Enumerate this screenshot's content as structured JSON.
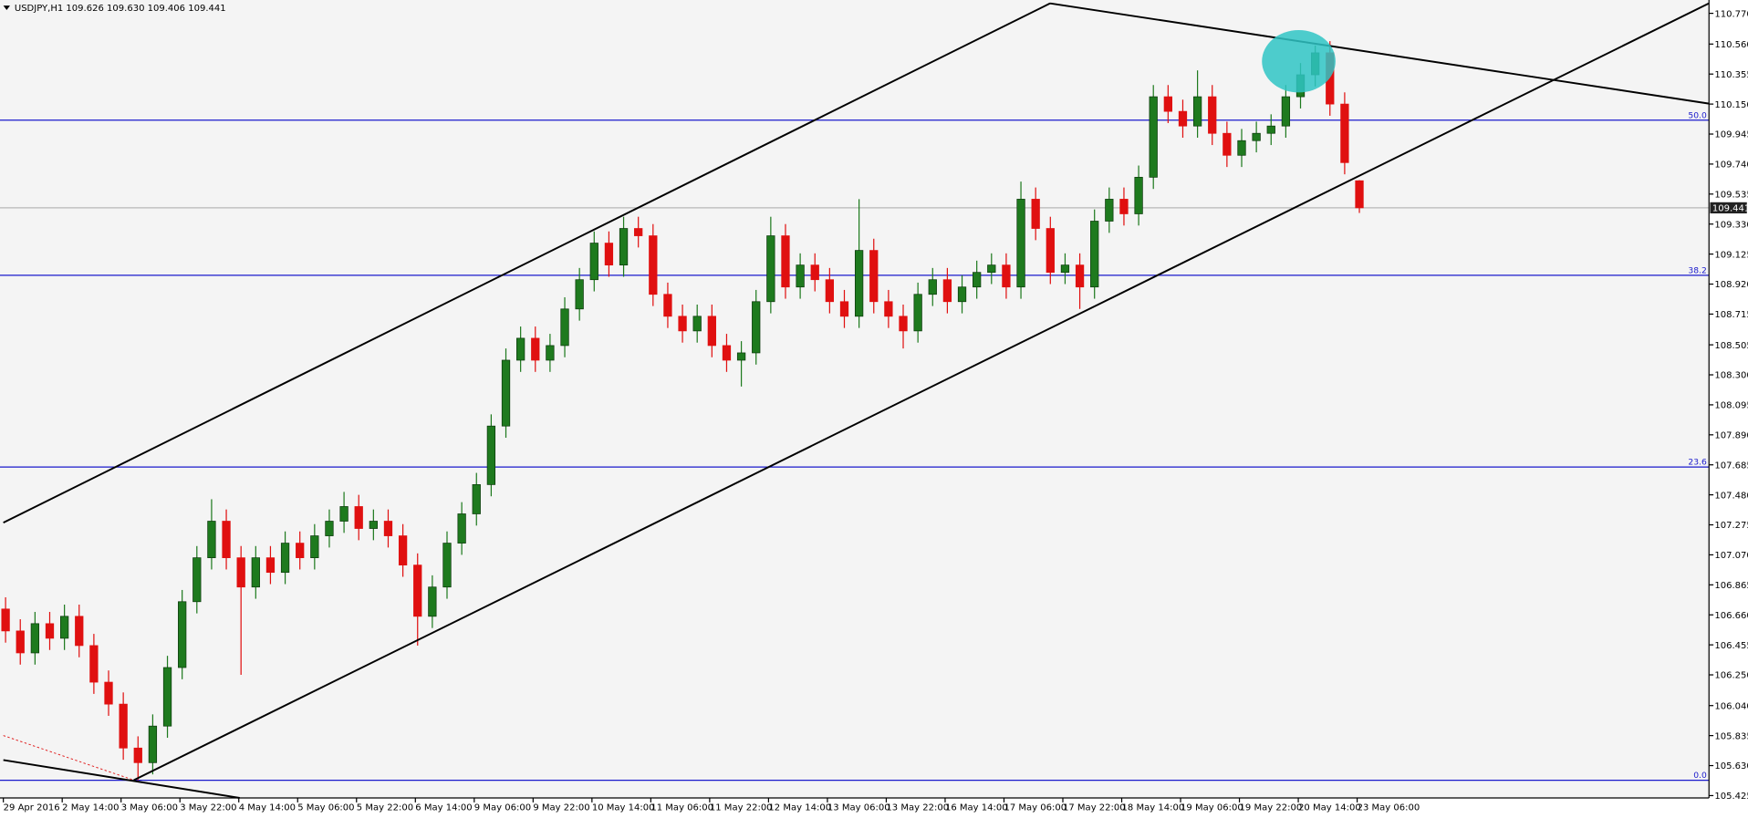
{
  "chart_data": {
    "type": "candlestick",
    "title": "USDJPY,H1  109.626 109.630 109.406 109.441",
    "bull_color": "#1e7a1e",
    "bear_color": "#e01010",
    "categories": [
      "29 Apr 2016",
      null,
      null,
      null,
      "2 May 14:00",
      null,
      null,
      null,
      "3 May 06:00",
      null,
      null,
      null,
      "3 May 22:00",
      null,
      null,
      null,
      "4 May 14:00",
      null,
      null,
      null,
      "5 May 06:00",
      null,
      null,
      null,
      "5 May 22:00",
      null,
      null,
      null,
      "6 May 14:00",
      null,
      null,
      null,
      "9 May 06:00",
      null,
      null,
      null,
      "9 May 22:00",
      null,
      null,
      null,
      "10 May 14:00",
      null,
      null,
      null,
      "11 May 06:00",
      null,
      null,
      null,
      "11 May 22:00",
      null,
      null,
      null,
      "12 May 14:00",
      null,
      null,
      null,
      "13 May 06:00",
      null,
      null,
      null,
      "13 May 22:00",
      null,
      null,
      null,
      "16 May 14:00",
      null,
      null,
      null,
      "17 May 06:00",
      null,
      null,
      null,
      "17 May 22:00",
      null,
      null,
      null,
      "18 May 14:00",
      null,
      null,
      null,
      "19 May 06:00",
      null,
      null,
      null,
      "19 May 22:00",
      null,
      null,
      null,
      "20 May 14:00",
      null,
      null,
      null,
      "23 May 06:00"
    ],
    "open": [
      106.7,
      106.55,
      106.4,
      106.6,
      106.5,
      106.65,
      106.45,
      106.2,
      106.05,
      105.75,
      105.65,
      105.9,
      106.3,
      106.75,
      107.05,
      107.3,
      107.05,
      106.85,
      107.05,
      106.95,
      107.15,
      107.05,
      107.2,
      107.3,
      107.4,
      107.25,
      107.3,
      107.2,
      107.0,
      106.65,
      106.85,
      107.15,
      107.35,
      107.55,
      107.95,
      108.4,
      108.55,
      108.4,
      108.5,
      108.75,
      108.95,
      109.2,
      109.05,
      109.3,
      109.25,
      108.85,
      108.7,
      108.6,
      108.7,
      108.5,
      108.4,
      108.45,
      108.8,
      109.25,
      108.9,
      109.05,
      108.95,
      108.8,
      108.7,
      109.15,
      108.8,
      108.7,
      108.6,
      108.85,
      108.95,
      108.8,
      108.9,
      109.0,
      109.05,
      108.9,
      109.5,
      109.3,
      109.0,
      109.05,
      108.9,
      109.35,
      109.5,
      109.4,
      109.65,
      110.2,
      110.1,
      110.0,
      110.2,
      109.95,
      109.8,
      109.9,
      109.95,
      110.0,
      110.2,
      110.35,
      110.5,
      110.15,
      109.626
    ],
    "high": [
      106.78,
      106.63,
      106.68,
      106.68,
      106.73,
      106.73,
      106.53,
      106.28,
      106.13,
      105.83,
      105.98,
      106.38,
      106.83,
      107.13,
      107.45,
      107.38,
      107.13,
      107.13,
      107.13,
      107.23,
      107.23,
      107.28,
      107.38,
      107.5,
      107.48,
      107.38,
      107.38,
      107.28,
      107.08,
      106.93,
      107.23,
      107.43,
      107.63,
      108.03,
      108.48,
      108.63,
      108.63,
      108.58,
      108.83,
      109.03,
      109.28,
      109.28,
      109.38,
      109.38,
      109.33,
      108.93,
      108.78,
      108.78,
      108.78,
      108.58,
      108.53,
      108.88,
      109.38,
      109.33,
      109.13,
      109.13,
      109.03,
      108.88,
      109.5,
      109.23,
      108.88,
      108.78,
      108.93,
      109.03,
      109.03,
      108.98,
      109.08,
      109.13,
      109.13,
      109.62,
      109.58,
      109.38,
      109.13,
      109.13,
      109.43,
      109.58,
      109.58,
      109.73,
      110.28,
      110.28,
      110.18,
      110.38,
      110.28,
      110.03,
      109.98,
      110.03,
      110.08,
      110.28,
      110.43,
      110.55,
      110.58,
      110.23,
      109.63
    ],
    "low": [
      106.47,
      106.32,
      106.32,
      106.42,
      106.42,
      106.37,
      106.12,
      105.97,
      105.67,
      105.53,
      105.57,
      105.82,
      106.22,
      106.67,
      106.97,
      106.97,
      106.25,
      106.77,
      106.87,
      106.87,
      106.97,
      106.97,
      107.12,
      107.22,
      107.17,
      107.17,
      107.12,
      106.92,
      106.45,
      106.57,
      106.77,
      107.07,
      107.27,
      107.47,
      107.87,
      108.32,
      108.32,
      108.32,
      108.42,
      108.67,
      108.87,
      108.97,
      108.97,
      109.17,
      108.77,
      108.62,
      108.52,
      108.52,
      108.42,
      108.32,
      108.22,
      108.37,
      108.72,
      108.82,
      108.82,
      108.87,
      108.72,
      108.62,
      108.62,
      108.72,
      108.62,
      108.48,
      108.52,
      108.77,
      108.72,
      108.72,
      108.82,
      108.92,
      108.82,
      108.82,
      109.22,
      108.92,
      108.92,
      108.75,
      108.82,
      109.27,
      109.32,
      109.32,
      109.57,
      110.02,
      109.92,
      109.92,
      109.87,
      109.72,
      109.72,
      109.82,
      109.87,
      109.92,
      110.12,
      110.27,
      110.07,
      109.67,
      109.406
    ],
    "close": [
      106.55,
      106.4,
      106.6,
      106.5,
      106.65,
      106.45,
      106.2,
      106.05,
      105.75,
      105.65,
      105.9,
      106.3,
      106.75,
      107.05,
      107.3,
      107.05,
      106.85,
      107.05,
      106.95,
      107.15,
      107.05,
      107.2,
      107.3,
      107.4,
      107.25,
      107.3,
      107.2,
      107.0,
      106.65,
      106.85,
      107.15,
      107.35,
      107.55,
      107.95,
      108.4,
      108.55,
      108.4,
      108.5,
      108.75,
      108.95,
      109.2,
      109.05,
      109.3,
      109.25,
      108.85,
      108.7,
      108.6,
      108.7,
      108.5,
      108.4,
      108.45,
      108.8,
      109.25,
      108.9,
      109.05,
      108.95,
      108.8,
      108.7,
      109.15,
      108.8,
      108.7,
      108.6,
      108.85,
      108.95,
      108.8,
      108.9,
      109.0,
      109.05,
      108.9,
      109.5,
      109.3,
      109.0,
      109.05,
      108.9,
      109.35,
      109.5,
      109.4,
      109.65,
      110.2,
      110.1,
      110.0,
      110.2,
      109.95,
      109.8,
      109.9,
      109.95,
      110.0,
      110.2,
      110.35,
      110.5,
      110.15,
      109.75,
      109.441
    ],
    "ylim": [
      105.409,
      110.861
    ],
    "yticks": [
      {
        "value": 110.77,
        "label": "110.770"
      },
      {
        "value": 110.56,
        "label": "110.560"
      },
      110.355,
      {
        "value": 110.15,
        "label": "110.150"
      },
      109.945,
      {
        "value": 109.74,
        "label": "109.740"
      },
      109.535,
      {
        "value": 109.33,
        "label": "109.330"
      },
      109.125,
      {
        "value": 108.92,
        "label": "108.920"
      },
      108.715,
      108.505,
      {
        "value": 108.3,
        "label": "108.300"
      },
      108.095,
      {
        "value": 107.89,
        "label": "107.890"
      },
      107.685,
      {
        "value": 107.48,
        "label": "107.480"
      },
      107.275,
      {
        "value": 107.07,
        "label": "107.070"
      },
      106.865,
      {
        "value": 106.66,
        "label": "106.660"
      },
      106.455,
      {
        "value": 106.25,
        "label": "106.250"
      },
      {
        "value": 106.04,
        "label": "106.040"
      },
      105.835,
      {
        "value": 105.63,
        "label": "105.630"
      },
      105.425
    ],
    "levels": [
      {
        "label": "50.0",
        "value": 110.04
      },
      {
        "label": "38.2",
        "value": 108.98
      },
      {
        "label": "23.6",
        "value": 107.67
      },
      {
        "label": "0.0",
        "value": 105.53
      }
    ],
    "level_color": "#1a1acc",
    "last_price": 109.441
  }
}
